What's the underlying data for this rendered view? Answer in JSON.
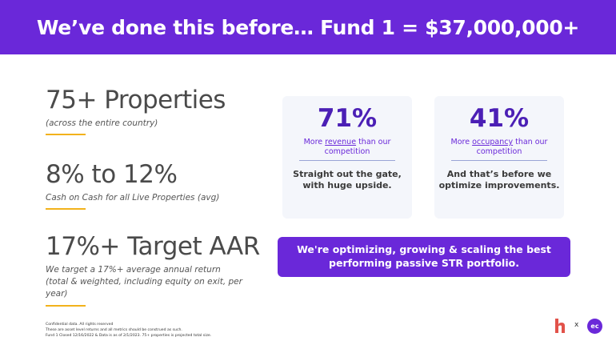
{
  "header": {
    "title": "We’ve done this before… Fund 1 = $37,000,000+"
  },
  "stats": [
    {
      "value": "75+ Properties",
      "caption": "(across the entire country)"
    },
    {
      "value": "8% to 12%",
      "caption": "Cash on Cash for all Live Properties (avg)"
    },
    {
      "value": "17%+ Target AAR",
      "caption": "We target a 17%+ average annual return (total & weighted, including equity on exit, per year)"
    }
  ],
  "cards": [
    {
      "percent": "71%",
      "label_pre": "More ",
      "label_link": "revenue",
      "label_post": " than our competition",
      "note": "Straight out the gate, with huge upside."
    },
    {
      "percent": "41%",
      "label_pre": "More ",
      "label_link": "occupancy",
      "label_post": " than our competition",
      "note": "And that’s before we optimize improvements."
    }
  ],
  "callout": {
    "text": "We're optimizing, growing & scaling the best\nperforming passive STR portfolio."
  },
  "footer": {
    "line1": "Confidential data. All rights reserved",
    "line2": "These are asset level returns and all metrics should be construed as such.",
    "line3": "Fund 1 Closed 12/16/2022 & Data is as of 2/1/2023. 75+ properties is projected total size."
  },
  "logos": {
    "separator": "x",
    "partner_mark": "ec",
    "brand_color": "#6a28d9",
    "accent_color": "#f2b21b",
    "h_logo_color": "#e2524a"
  }
}
